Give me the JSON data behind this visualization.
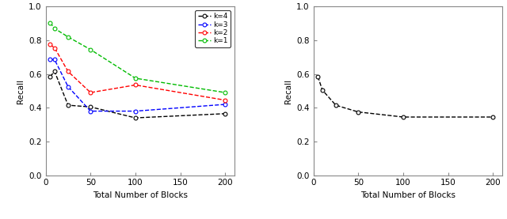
{
  "left_plot": {
    "x_k4": [
      5,
      10,
      25,
      50,
      100,
      200
    ],
    "k4": [
      0.585,
      0.615,
      0.415,
      0.405,
      0.34,
      0.365
    ],
    "x_k3": [
      5,
      10,
      25,
      50,
      100,
      200
    ],
    "k3": [
      0.685,
      0.685,
      0.525,
      0.38,
      0.38,
      0.42
    ],
    "x_k2": [
      5,
      10,
      25,
      50,
      100,
      200
    ],
    "k2": [
      0.775,
      0.755,
      0.615,
      0.49,
      0.535,
      0.445
    ],
    "x_k1": [
      5,
      10,
      25,
      50,
      100,
      200
    ],
    "k1": [
      0.905,
      0.87,
      0.82,
      0.745,
      0.575,
      0.49
    ],
    "colors": {
      "k4": "#000000",
      "k3": "#0000FF",
      "k2": "#FF0000",
      "k1": "#00BB00"
    },
    "ylabel": "Recall",
    "xlabel": "Total Number of Blocks",
    "ylim": [
      0.0,
      1.0
    ],
    "xlim": [
      0,
      210
    ],
    "xticks": [
      0,
      50,
      100,
      150,
      200
    ],
    "yticks": [
      0.0,
      0.2,
      0.4,
      0.6,
      0.8,
      1.0
    ],
    "legend_labels": [
      "k=4",
      "k=3",
      "k=2",
      "k=1"
    ]
  },
  "right_plot": {
    "x": [
      5,
      10,
      25,
      50,
      100,
      200
    ],
    "y": [
      0.585,
      0.505,
      0.415,
      0.375,
      0.345,
      0.345
    ],
    "color": "#000000",
    "ylabel": "Recall",
    "xlabel": "Total Number of Blocks",
    "ylim": [
      0.0,
      1.0
    ],
    "xlim": [
      0,
      210
    ],
    "xticks": [
      0,
      50,
      100,
      150,
      200
    ],
    "yticks": [
      0.0,
      0.2,
      0.4,
      0.6,
      0.8,
      1.0
    ]
  },
  "bg_color": "#F0F0F0",
  "spine_color": "#888888"
}
